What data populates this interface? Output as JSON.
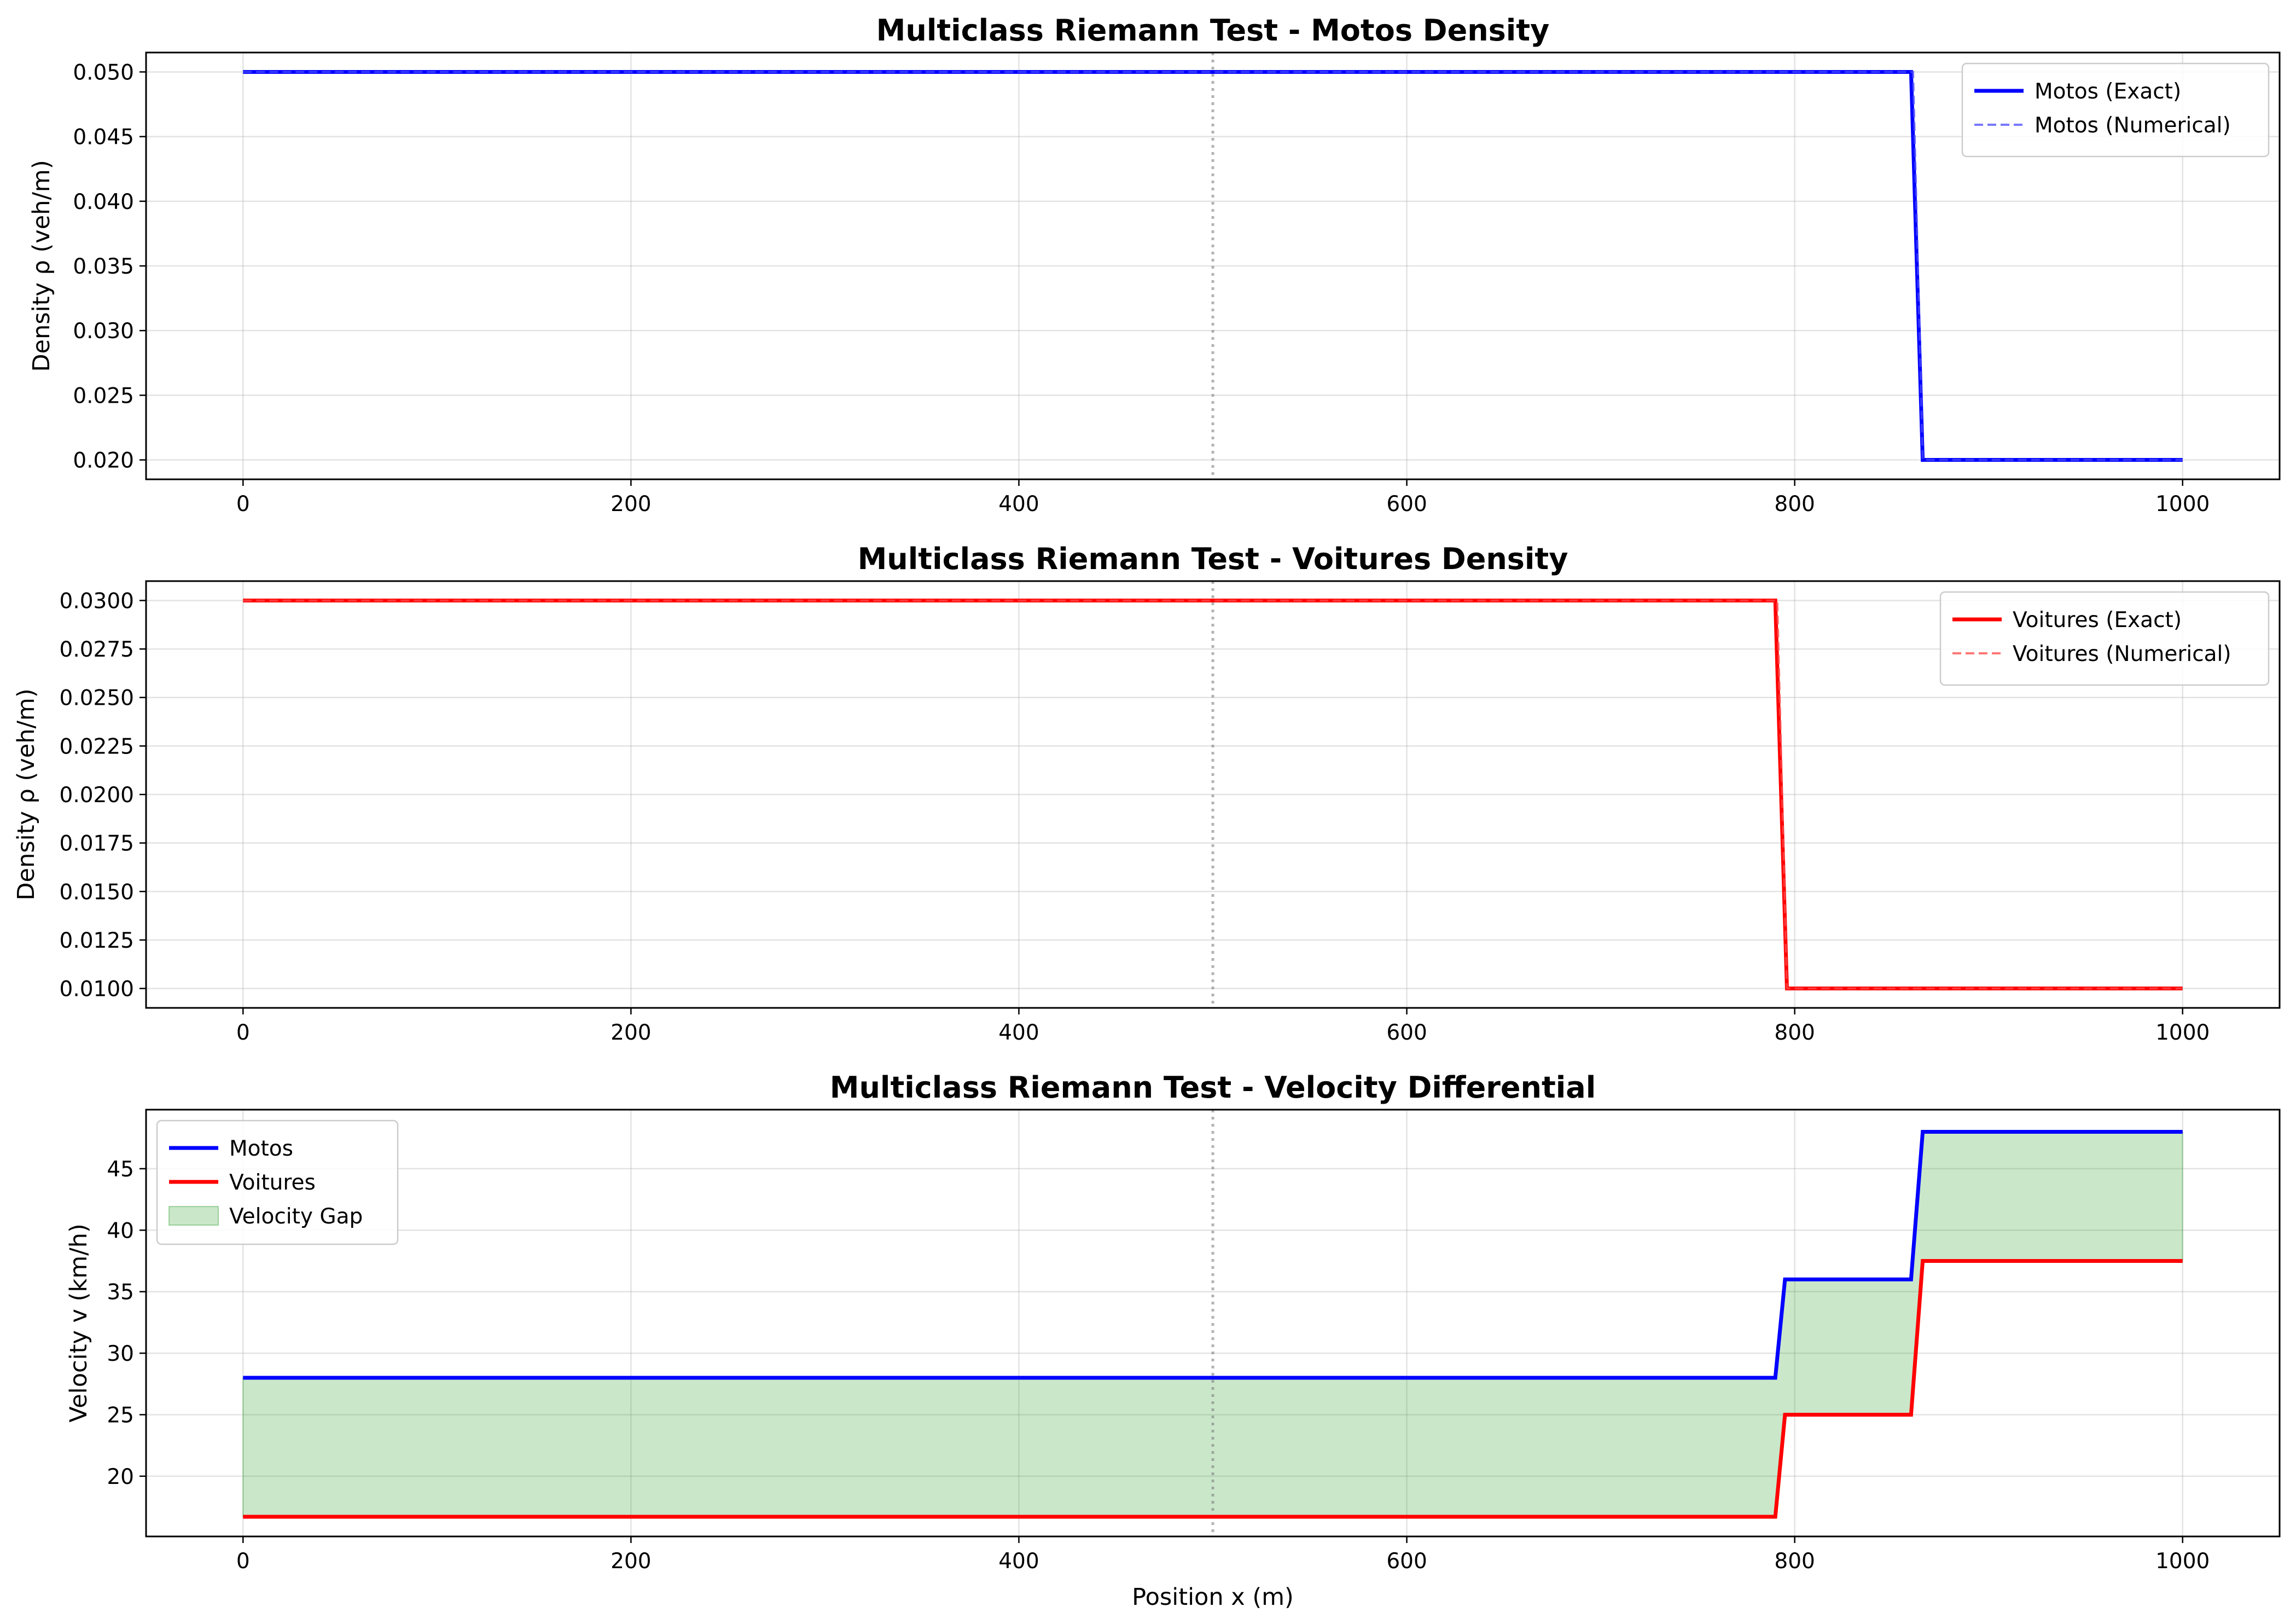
{
  "chart_data": [
    {
      "type": "line",
      "title": "Multiclass Riemann Test - Motos Density",
      "xlabel": "",
      "ylabel": "Density ρ (veh/m)",
      "xlim": [
        -50,
        1050
      ],
      "ylim": [
        0.0185,
        0.0515
      ],
      "xticks": [
        0,
        200,
        400,
        600,
        800,
        1000
      ],
      "xtick_labels": [
        "0",
        "200",
        "400",
        "600",
        "800",
        "1000"
      ],
      "yticks": [
        0.02,
        0.025,
        0.03,
        0.035,
        0.04,
        0.045,
        0.05
      ],
      "ytick_labels": [
        "0.020",
        "0.025",
        "0.030",
        "0.035",
        "0.040",
        "0.045",
        "0.050"
      ],
      "grid": true,
      "legend_position": "top-right",
      "vertical_marker_x": 500,
      "series": [
        {
          "name": "Motos (Exact)",
          "color": "#0000ff",
          "style": "solid",
          "x": [
            0,
            860,
            866,
            1000
          ],
          "y": [
            0.05,
            0.05,
            0.02,
            0.02
          ]
        },
        {
          "name": "Motos (Numerical)",
          "color": "#4a4aff",
          "style": "dashed",
          "x": [
            0,
            861,
            866,
            1000
          ],
          "y": [
            0.05,
            0.05,
            0.02,
            0.02
          ]
        }
      ]
    },
    {
      "type": "line",
      "title": "Multiclass Riemann Test - Voitures Density",
      "xlabel": "",
      "ylabel": "Density ρ (veh/m)",
      "xlim": [
        -50,
        1050
      ],
      "ylim": [
        0.009,
        0.031
      ],
      "xticks": [
        0,
        200,
        400,
        600,
        800,
        1000
      ],
      "xtick_labels": [
        "0",
        "200",
        "400",
        "600",
        "800",
        "1000"
      ],
      "yticks": [
        0.01,
        0.0125,
        0.015,
        0.0175,
        0.02,
        0.0225,
        0.025,
        0.0275,
        0.03
      ],
      "ytick_labels": [
        "0.0100",
        "0.0125",
        "0.0150",
        "0.0175",
        "0.0200",
        "0.0225",
        "0.0250",
        "0.0275",
        "0.0300"
      ],
      "grid": true,
      "legend_position": "top-right",
      "vertical_marker_x": 500,
      "series": [
        {
          "name": "Voitures (Exact)",
          "color": "#ff0000",
          "style": "solid",
          "x": [
            0,
            790,
            796,
            1000
          ],
          "y": [
            0.03,
            0.03,
            0.01,
            0.01
          ]
        },
        {
          "name": "Voitures (Numerical)",
          "color": "#ff4a4a",
          "style": "dashed",
          "x": [
            0,
            791,
            796,
            1000
          ],
          "y": [
            0.03,
            0.03,
            0.01,
            0.01
          ]
        }
      ]
    },
    {
      "type": "line",
      "title": "Multiclass Riemann Test - Velocity Differential",
      "xlabel": "Position x (m)",
      "ylabel": "Velocity v (km/h)",
      "xlim": [
        -50,
        1050
      ],
      "ylim": [
        15.1,
        49.8
      ],
      "xticks": [
        0,
        200,
        400,
        600,
        800,
        1000
      ],
      "xtick_labels": [
        "0",
        "200",
        "400",
        "600",
        "800",
        "1000"
      ],
      "yticks": [
        20,
        25,
        30,
        35,
        40,
        45
      ],
      "ytick_labels": [
        "20",
        "25",
        "30",
        "35",
        "40",
        "45"
      ],
      "grid": true,
      "legend_position": "top-left",
      "vertical_marker_x": 500,
      "series": [
        {
          "name": "Motos",
          "color": "#0000ff",
          "style": "solid",
          "x": [
            0,
            790,
            795,
            860,
            866,
            1000
          ],
          "y": [
            28,
            28,
            36,
            36,
            48,
            48
          ]
        },
        {
          "name": "Voitures",
          "color": "#ff0000",
          "style": "solid",
          "x": [
            0,
            790,
            795,
            860,
            866,
            1000
          ],
          "y": [
            16.7,
            16.7,
            25,
            25,
            37.5,
            37.5
          ]
        }
      ],
      "fill_between": {
        "name": "Velocity Gap",
        "color": "#2ca02c",
        "opacity": 0.25,
        "upper": "Motos",
        "lower": "Voitures"
      }
    }
  ]
}
